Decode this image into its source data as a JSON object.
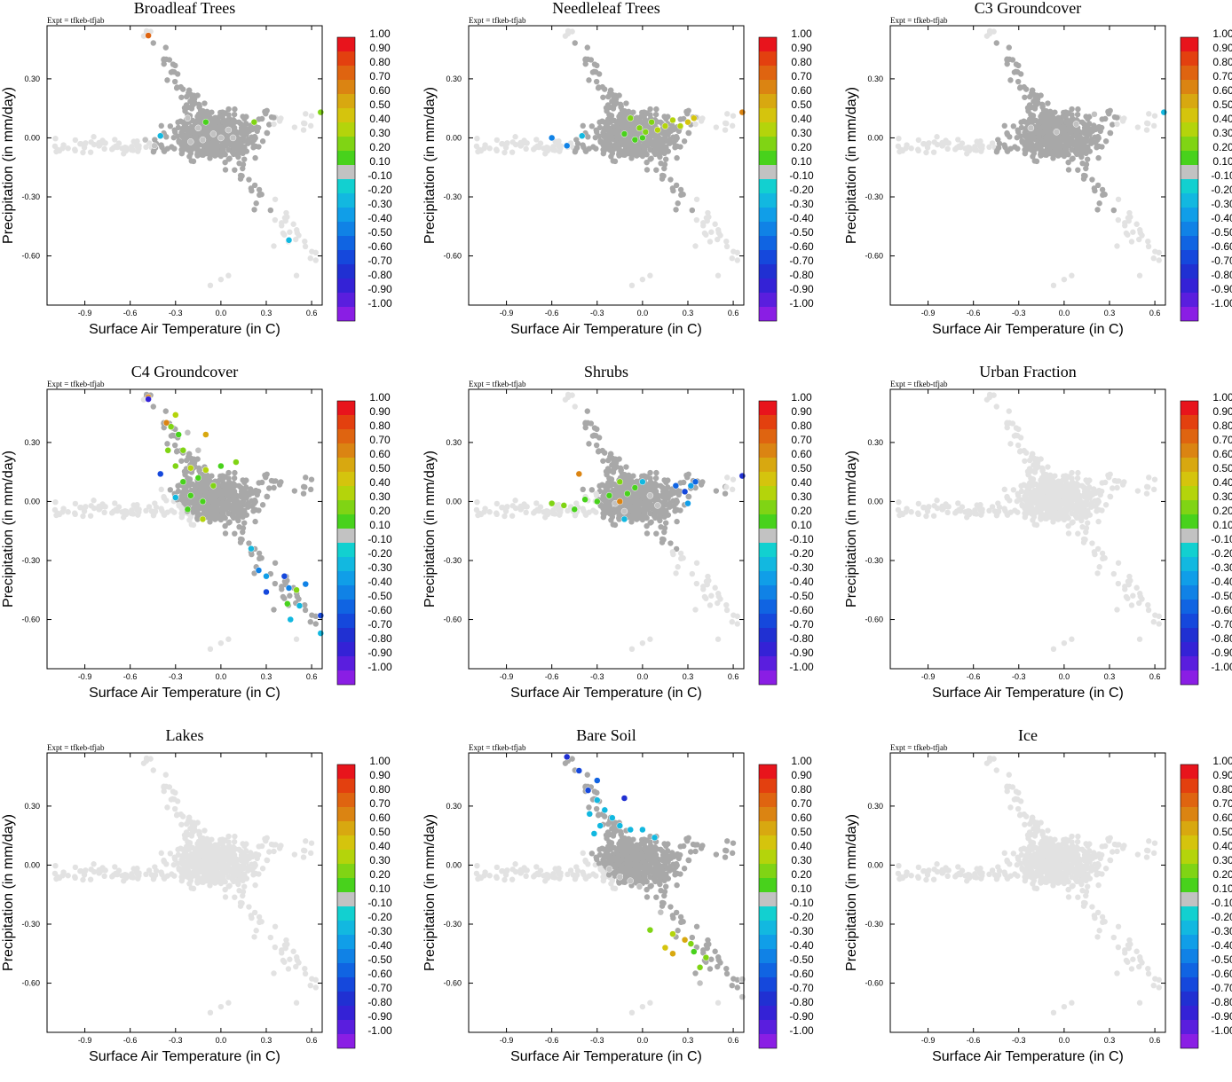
{
  "figure": {
    "expt_label": "Expt = tfkeb-tfjab",
    "xlabel": "Surface Air Temperature (in C)",
    "ylabel": "Precipitation (in mm/day)",
    "xticks": [
      "-0.9",
      "-0.6",
      "-0.3",
      "0.0",
      "0.3",
      "0.6"
    ],
    "yticks": [
      "0.30",
      "0.00",
      "-0.30",
      "-0.60"
    ],
    "colorbar_labels": [
      "1.00",
      "0.90",
      "0.80",
      "0.70",
      "0.60",
      "0.50",
      "0.40",
      "0.30",
      "0.20",
      "0.10",
      "-0.10",
      "-0.20",
      "-0.30",
      "-0.40",
      "-0.50",
      "-0.60",
      "-0.70",
      "-0.80",
      "-0.90",
      "-1.00"
    ],
    "colorbar_colors": [
      "#e8141c",
      "#e3400f",
      "#df6410",
      "#db8412",
      "#d8a810",
      "#d5c40d",
      "#b4d40b",
      "#80d414",
      "#48d21c",
      "#c2c2c2",
      "#12d0d0",
      "#12b8e0",
      "#109ee8",
      "#1082e6",
      "#1064e2",
      "#1548dc",
      "#2030d2",
      "#3422d6",
      "#5a1ede",
      "#8a1ee4"
    ],
    "background_point_color": "#e2e2e2",
    "neutral_point_color": "#a8a8a8"
  },
  "chart_data": [
    {
      "type": "scatter",
      "title": "Broadleaf Trees",
      "xlim": [
        -1.15,
        0.67
      ],
      "ylim": [
        -0.85,
        0.57
      ],
      "colored_points": [
        {
          "x": -0.48,
          "y": 0.52,
          "v": 0.8
        },
        {
          "x": -0.22,
          "y": 0.1,
          "v": 0.15
        },
        {
          "x": -0.15,
          "y": 0.05,
          "v": 0.15
        },
        {
          "x": -0.1,
          "y": 0.08,
          "v": 0.2
        },
        {
          "x": -0.05,
          "y": 0.02,
          "v": 0.15
        },
        {
          "x": 0.0,
          "y": 0.0,
          "v": 0.15
        },
        {
          "x": 0.05,
          "y": 0.04,
          "v": 0.15
        },
        {
          "x": 0.08,
          "y": 0.0,
          "v": 0.15
        },
        {
          "x": -0.2,
          "y": -0.02,
          "v": 0.15
        },
        {
          "x": -0.12,
          "y": -0.01,
          "v": 0.15
        },
        {
          "x": 0.22,
          "y": 0.08,
          "v": 0.35
        },
        {
          "x": 0.66,
          "y": 0.13,
          "v": 0.35
        },
        {
          "x": -0.5,
          "y": -0.01,
          "v": 0.15
        },
        {
          "x": -0.44,
          "y": -0.04,
          "v": 0.15
        },
        {
          "x": -0.4,
          "y": 0.01,
          "v": -0.2
        },
        {
          "x": 0.45,
          "y": -0.52,
          "v": -0.2
        }
      ]
    },
    {
      "type": "scatter",
      "title": "Needleleaf Trees",
      "xlim": [
        -1.15,
        0.67
      ],
      "ylim": [
        -0.85,
        0.57
      ],
      "colored_points": [
        {
          "x": -0.6,
          "y": 0.0,
          "v": -0.4
        },
        {
          "x": -0.5,
          "y": -0.04,
          "v": -0.4
        },
        {
          "x": -0.4,
          "y": 0.01,
          "v": -0.2
        },
        {
          "x": -0.08,
          "y": 0.1,
          "v": 0.3
        },
        {
          "x": -0.02,
          "y": 0.05,
          "v": 0.3
        },
        {
          "x": 0.02,
          "y": 0.03,
          "v": 0.3
        },
        {
          "x": 0.06,
          "y": 0.08,
          "v": 0.3
        },
        {
          "x": 0.1,
          "y": 0.04,
          "v": 0.4
        },
        {
          "x": 0.15,
          "y": 0.06,
          "v": 0.4
        },
        {
          "x": 0.2,
          "y": 0.09,
          "v": 0.4
        },
        {
          "x": 0.25,
          "y": 0.06,
          "v": 0.4
        },
        {
          "x": 0.3,
          "y": 0.08,
          "v": 0.5
        },
        {
          "x": 0.34,
          "y": 0.1,
          "v": 0.5
        },
        {
          "x": -0.12,
          "y": 0.02,
          "v": 0.2
        },
        {
          "x": -0.05,
          "y": -0.01,
          "v": 0.2
        },
        {
          "x": 0.0,
          "y": 0.0,
          "v": 0.2
        },
        {
          "x": 0.66,
          "y": 0.13,
          "v": 0.65
        }
      ]
    },
    {
      "type": "scatter",
      "title": "C3 Groundcover",
      "xlim": [
        -1.15,
        0.67
      ],
      "ylim": [
        -0.85,
        0.57
      ],
      "colored_points": [
        {
          "x": -0.22,
          "y": 0.05,
          "v": 0.15
        },
        {
          "x": -0.05,
          "y": 0.03,
          "v": 0.15
        },
        {
          "x": 0.08,
          "y": 0.07,
          "v": 0.15
        },
        {
          "x": 0.2,
          "y": 0.12,
          "v": 0.15
        },
        {
          "x": 0.66,
          "y": 0.13,
          "v": -0.2
        }
      ]
    },
    {
      "type": "scatter",
      "title": "C4 Groundcover",
      "xlim": [
        -1.15,
        0.67
      ],
      "ylim": [
        -0.85,
        0.57
      ],
      "colored_points": [
        {
          "x": -0.48,
          "y": 0.53,
          "v": 0.7
        },
        {
          "x": -0.48,
          "y": 0.52,
          "v": -0.8
        },
        {
          "x": -0.36,
          "y": 0.4,
          "v": 0.7
        },
        {
          "x": -0.3,
          "y": 0.44,
          "v": 0.4
        },
        {
          "x": -0.33,
          "y": 0.38,
          "v": 0.3
        },
        {
          "x": -0.28,
          "y": 0.34,
          "v": 0.2
        },
        {
          "x": -0.22,
          "y": 0.35,
          "v": 0.15
        },
        {
          "x": -0.1,
          "y": 0.34,
          "v": 0.6
        },
        {
          "x": -0.35,
          "y": 0.26,
          "v": 0.25
        },
        {
          "x": -0.25,
          "y": 0.26,
          "v": 0.25
        },
        {
          "x": -0.15,
          "y": 0.26,
          "v": 0.15
        },
        {
          "x": -0.3,
          "y": 0.18,
          "v": 0.25
        },
        {
          "x": -0.2,
          "y": 0.17,
          "v": 0.4
        },
        {
          "x": -0.1,
          "y": 0.16,
          "v": 0.4
        },
        {
          "x": 0.0,
          "y": 0.18,
          "v": 0.2
        },
        {
          "x": 0.1,
          "y": 0.2,
          "v": 0.3
        },
        {
          "x": -0.25,
          "y": 0.1,
          "v": 0.2
        },
        {
          "x": -0.15,
          "y": 0.12,
          "v": 0.2
        },
        {
          "x": -0.05,
          "y": 0.08,
          "v": 0.25
        },
        {
          "x": -0.2,
          "y": 0.03,
          "v": 0.2
        },
        {
          "x": -0.12,
          "y": 0.0,
          "v": 0.2
        },
        {
          "x": -0.4,
          "y": 0.14,
          "v": -0.6
        },
        {
          "x": -0.3,
          "y": 0.02,
          "v": -0.2
        },
        {
          "x": -0.22,
          "y": -0.04,
          "v": 0.2
        },
        {
          "x": -0.12,
          "y": -0.09,
          "v": 0.4
        },
        {
          "x": 0.2,
          "y": -0.24,
          "v": -0.2
        },
        {
          "x": 0.25,
          "y": -0.35,
          "v": -0.4
        },
        {
          "x": 0.3,
          "y": -0.38,
          "v": -0.3
        },
        {
          "x": 0.3,
          "y": -0.46,
          "v": -0.6
        },
        {
          "x": 0.42,
          "y": -0.38,
          "v": -0.6
        },
        {
          "x": 0.45,
          "y": -0.44,
          "v": -0.4
        },
        {
          "x": 0.5,
          "y": -0.45,
          "v": 0.3
        },
        {
          "x": 0.56,
          "y": -0.42,
          "v": -0.4
        },
        {
          "x": 0.44,
          "y": -0.52,
          "v": 0.2
        },
        {
          "x": 0.52,
          "y": -0.53,
          "v": -0.2
        },
        {
          "x": 0.46,
          "y": -0.6,
          "v": -0.2
        },
        {
          "x": 0.66,
          "y": -0.58,
          "v": -0.6
        },
        {
          "x": 0.66,
          "y": -0.67,
          "v": -0.2
        }
      ]
    },
    {
      "type": "scatter",
      "title": "Shrubs",
      "xlim": [
        -1.15,
        0.67
      ],
      "ylim": [
        -0.85,
        0.57
      ],
      "colored_points": [
        {
          "x": -0.42,
          "y": 0.14,
          "v": 0.65
        },
        {
          "x": -0.6,
          "y": -0.01,
          "v": 0.3
        },
        {
          "x": -0.52,
          "y": -0.02,
          "v": 0.3
        },
        {
          "x": -0.45,
          "y": -0.04,
          "v": 0.2
        },
        {
          "x": -0.38,
          "y": 0.01,
          "v": 0.2
        },
        {
          "x": -0.3,
          "y": 0.0,
          "v": 0.2
        },
        {
          "x": -0.22,
          "y": 0.03,
          "v": 0.2
        },
        {
          "x": -0.15,
          "y": 0.1,
          "v": 0.3
        },
        {
          "x": -0.1,
          "y": 0.04,
          "v": 0.2
        },
        {
          "x": -0.05,
          "y": 0.07,
          "v": 0.2
        },
        {
          "x": -0.18,
          "y": -0.01,
          "v": 0.15
        },
        {
          "x": -0.12,
          "y": -0.05,
          "v": 0.15
        },
        {
          "x": -0.15,
          "y": 0.0,
          "v": 0.65
        },
        {
          "x": 0.0,
          "y": 0.1,
          "v": -0.2
        },
        {
          "x": 0.05,
          "y": 0.03,
          "v": 0.15
        },
        {
          "x": 0.1,
          "y": -0.02,
          "v": 0.15
        },
        {
          "x": -0.12,
          "y": -0.09,
          "v": -0.2
        },
        {
          "x": 0.22,
          "y": 0.08,
          "v": -0.5
        },
        {
          "x": 0.28,
          "y": 0.05,
          "v": -0.6
        },
        {
          "x": 0.32,
          "y": 0.08,
          "v": -0.3
        },
        {
          "x": 0.35,
          "y": 0.1,
          "v": -0.5
        },
        {
          "x": 0.3,
          "y": -0.01,
          "v": -0.3
        },
        {
          "x": 0.66,
          "y": 0.13,
          "v": -0.75
        }
      ]
    },
    {
      "type": "scatter",
      "title": "Urban Fraction",
      "xlim": [
        -1.15,
        0.67
      ],
      "ylim": [
        -0.85,
        0.57
      ],
      "colored_points": []
    },
    {
      "type": "scatter",
      "title": "Lakes",
      "xlim": [
        -1.15,
        0.67
      ],
      "ylim": [
        -0.85,
        0.57
      ],
      "colored_points": []
    },
    {
      "type": "scatter",
      "title": "Bare Soil",
      "xlim": [
        -1.15,
        0.67
      ],
      "ylim": [
        -0.85,
        0.57
      ],
      "colored_points": [
        {
          "x": -0.5,
          "y": 0.55,
          "v": -0.7
        },
        {
          "x": -0.42,
          "y": 0.48,
          "v": -0.6
        },
        {
          "x": -0.3,
          "y": 0.43,
          "v": -0.5
        },
        {
          "x": -0.36,
          "y": 0.38,
          "v": -0.6
        },
        {
          "x": -0.12,
          "y": 0.34,
          "v": -0.7
        },
        {
          "x": -0.3,
          "y": 0.33,
          "v": -0.2
        },
        {
          "x": -0.25,
          "y": 0.28,
          "v": -0.2
        },
        {
          "x": -0.35,
          "y": 0.26,
          "v": -0.2
        },
        {
          "x": -0.2,
          "y": 0.24,
          "v": -0.2
        },
        {
          "x": -0.28,
          "y": 0.2,
          "v": -0.2
        },
        {
          "x": -0.15,
          "y": 0.2,
          "v": -0.2
        },
        {
          "x": -0.08,
          "y": 0.18,
          "v": -0.2
        },
        {
          "x": 0.0,
          "y": 0.18,
          "v": -0.2
        },
        {
          "x": 0.08,
          "y": 0.14,
          "v": -0.2
        },
        {
          "x": -0.32,
          "y": 0.16,
          "v": -0.2
        },
        {
          "x": -0.22,
          "y": -0.02,
          "v": 0.15
        },
        {
          "x": -0.15,
          "y": -0.06,
          "v": 0.15
        },
        {
          "x": -0.08,
          "y": -0.08,
          "v": 0.15
        },
        {
          "x": -0.02,
          "y": -0.11,
          "v": 0.15
        },
        {
          "x": 0.12,
          "y": -0.24,
          "v": 0.15
        },
        {
          "x": 0.05,
          "y": -0.33,
          "v": 0.35
        },
        {
          "x": 0.2,
          "y": -0.35,
          "v": 0.4
        },
        {
          "x": 0.15,
          "y": -0.42,
          "v": 0.5
        },
        {
          "x": 0.2,
          "y": -0.45,
          "v": 0.6
        },
        {
          "x": 0.28,
          "y": -0.38,
          "v": 0.6
        },
        {
          "x": 0.32,
          "y": -0.4,
          "v": 0.3
        },
        {
          "x": 0.34,
          "y": -0.44,
          "v": 0.2
        },
        {
          "x": 0.38,
          "y": -0.52,
          "v": 0.3
        },
        {
          "x": 0.42,
          "y": -0.47,
          "v": 0.3
        },
        {
          "x": 0.38,
          "y": -0.6,
          "v": 0.15
        },
        {
          "x": 0.66,
          "y": -0.58,
          "v": 0.15
        },
        {
          "x": 0.66,
          "y": -0.67,
          "v": 0.15
        }
      ]
    },
    {
      "type": "scatter",
      "title": "Ice",
      "xlim": [
        -1.15,
        0.67
      ],
      "ylim": [
        -0.85,
        0.57
      ],
      "colored_points": []
    }
  ]
}
